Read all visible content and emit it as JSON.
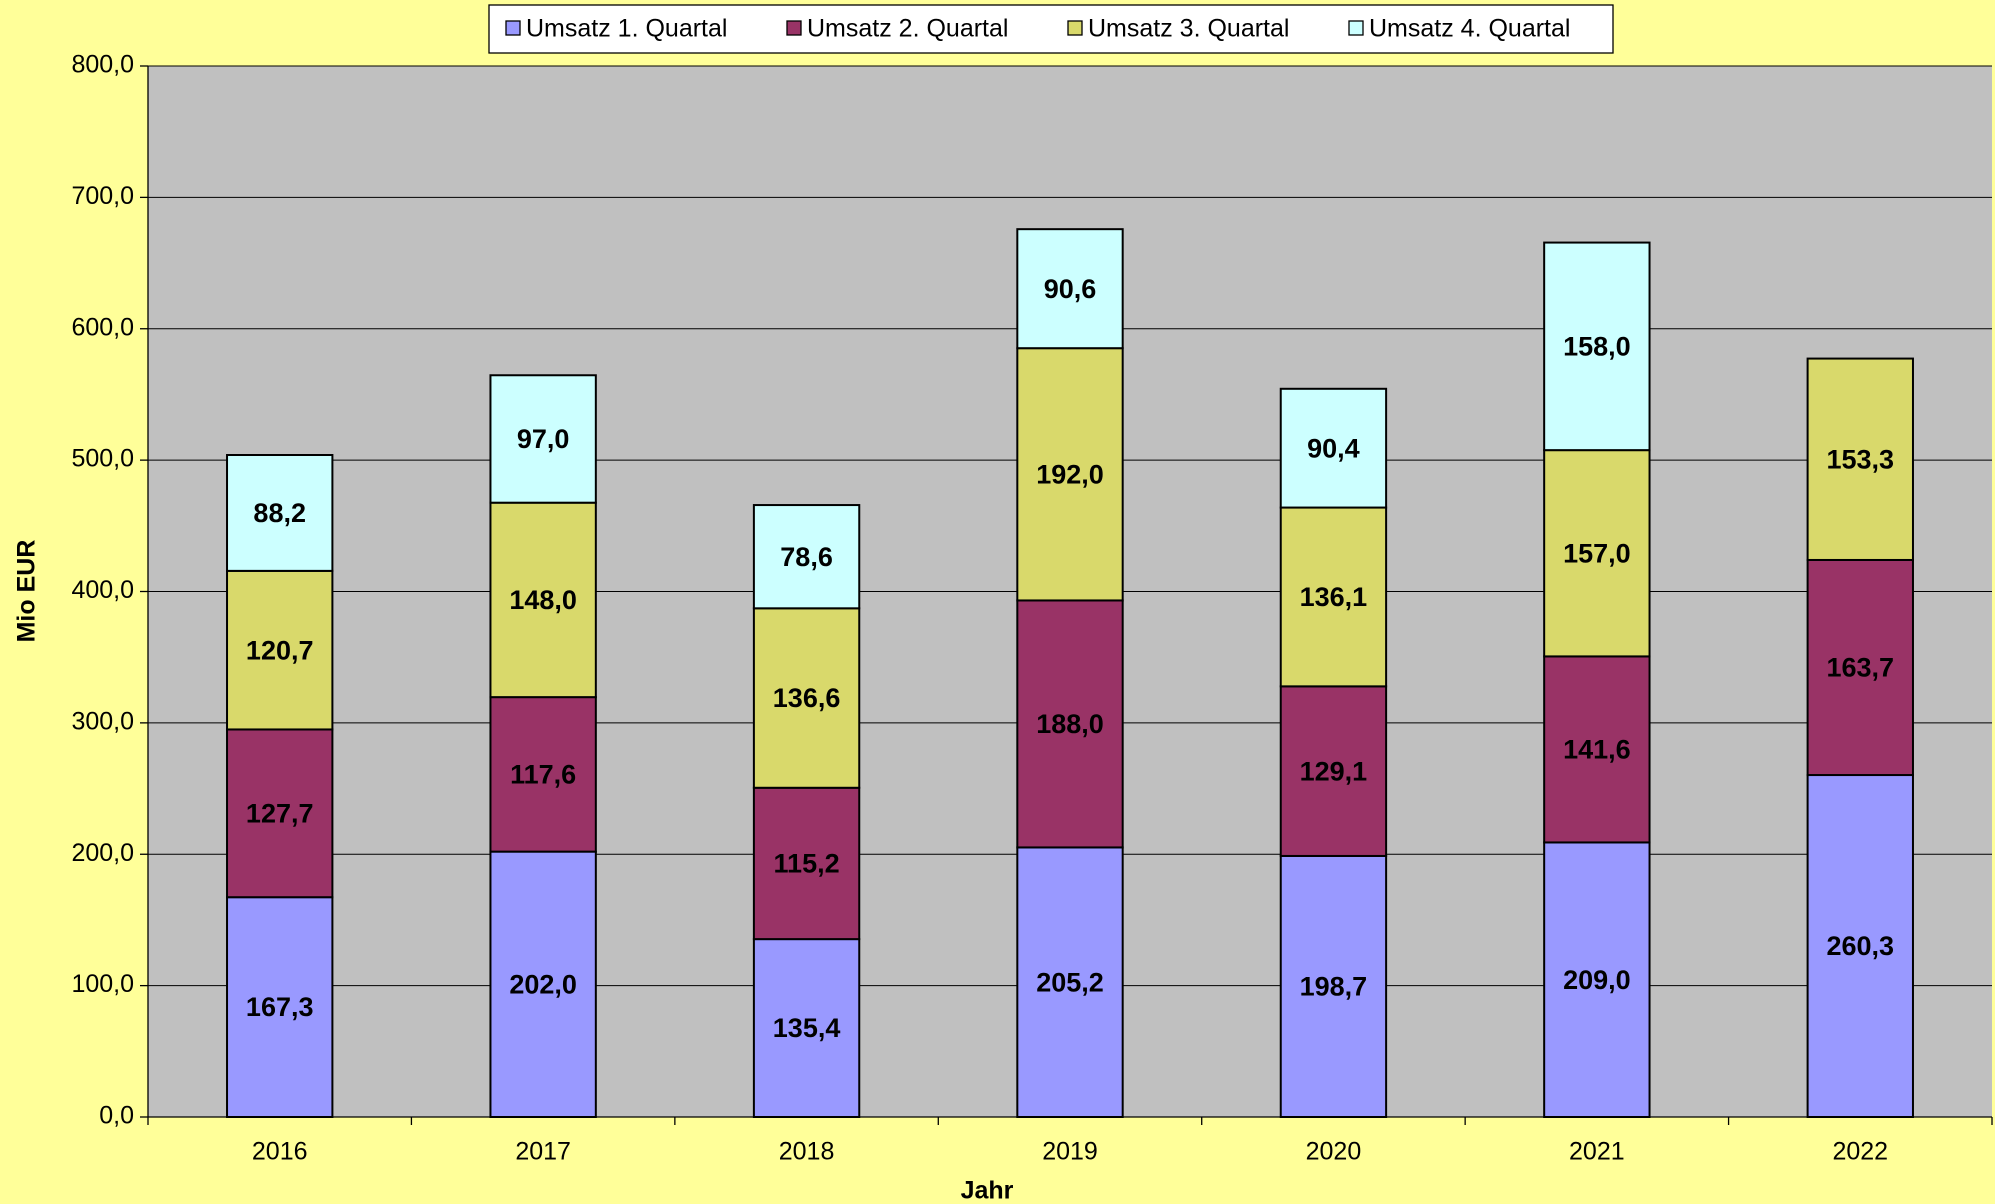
{
  "chart_data": {
    "type": "stacked_bar",
    "xlabel": "Jahr",
    "ylabel": "Mio EUR",
    "categories": [
      "2016",
      "2017",
      "2018",
      "2019",
      "2020",
      "2021",
      "2022"
    ],
    "series": [
      {
        "name": "Umsatz 1. Quartal",
        "color": "#9999ff",
        "values": [
          167.3,
          202.0,
          135.4,
          205.2,
          198.7,
          209.0,
          260.3
        ],
        "value_labels": [
          "167,3",
          "202,0",
          "135,4",
          "205,2",
          "198,7",
          "209,0",
          "260,3"
        ]
      },
      {
        "name": "Umsatz 2. Quartal",
        "color": "#993366",
        "values": [
          127.7,
          117.6,
          115.2,
          188.0,
          129.1,
          141.6,
          163.7
        ],
        "value_labels": [
          "127,7",
          "117,6",
          "115,2",
          "188,0",
          "129,1",
          "141,6",
          "163,7"
        ]
      },
      {
        "name": "Umsatz 3. Quartal",
        "color": "#d9d96b",
        "values": [
          120.7,
          148.0,
          136.6,
          192.0,
          136.1,
          157.0,
          153.3
        ],
        "value_labels": [
          "120,7",
          "148,0",
          "136,6",
          "192,0",
          "136,1",
          "157,0",
          "153,3"
        ]
      },
      {
        "name": "Umsatz 4. Quartal",
        "color": "#ccffff",
        "values": [
          88.2,
          97.0,
          78.6,
          90.6,
          90.4,
          158.0,
          null
        ],
        "value_labels": [
          "88,2",
          "97,0",
          "78,6",
          "90,6",
          "90,4",
          "158,0",
          null
        ]
      }
    ],
    "ylim": [
      0,
      800
    ],
    "yticks": [
      {
        "value": 0,
        "label": "0,0"
      },
      {
        "value": 100,
        "label": "100,0"
      },
      {
        "value": 200,
        "label": "200,0"
      },
      {
        "value": 300,
        "label": "300,0"
      },
      {
        "value": 400,
        "label": "400,0"
      },
      {
        "value": 500,
        "label": "500,0"
      },
      {
        "value": 600,
        "label": "600,0"
      },
      {
        "value": 700,
        "label": "700,0"
      },
      {
        "value": 800,
        "label": "800,0"
      }
    ],
    "grid": true,
    "legend": "top"
  }
}
